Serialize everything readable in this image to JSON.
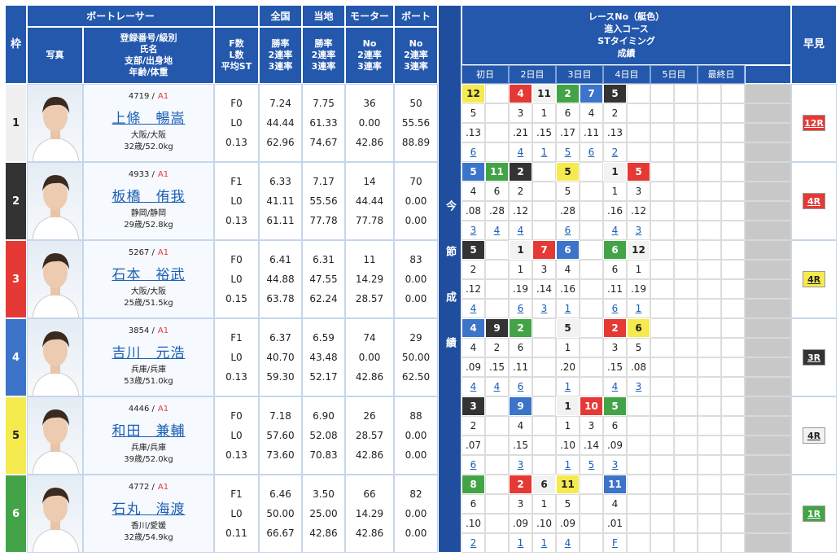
{
  "header": {
    "frame": "枠",
    "photo": "写真",
    "racer": "ボートレーサー",
    "racer_fields": [
      "登録番号/級別",
      "氏名",
      "支部/出身地",
      "年齢/体重"
    ],
    "fl_fields": [
      "F数",
      "L数",
      "平均ST"
    ],
    "national": "全国",
    "local": "当地",
    "motor": "モーター",
    "boat": "ボート",
    "rate_fields": [
      "勝率",
      "2連率",
      "3連率"
    ],
    "equip_fields": [
      "No",
      "2連率",
      "3連率"
    ],
    "race_fields": [
      "レースNo（艇色）",
      "進入コース",
      "STタイミング",
      "成績"
    ],
    "days": [
      "初日",
      "2日目",
      "3日目",
      "4日目",
      "5日目",
      "最終日"
    ],
    "session": "今節成績",
    "quick": "早見"
  },
  "racers": [
    {
      "frame": "1",
      "frame_color": "#f0f0f0",
      "reg": "4719 /",
      "class": "A1",
      "name": "上條　暢嵩",
      "branch": "大阪/大阪",
      "age": "32歳/52.0kg",
      "fl": [
        "F0",
        "L0",
        "0.13"
      ],
      "national": [
        "7.24",
        "44.44",
        "62.96"
      ],
      "local": [
        "7.75",
        "61.33",
        "74.67"
      ],
      "motor": [
        "36",
        "0.00",
        "42.86"
      ],
      "boat": [
        "50",
        "55.56",
        "88.89"
      ],
      "races": [
        {
          "race": "12",
          "color": "#f5ea4e",
          "course": "5",
          "st": ".13",
          "result": "6"
        },
        null,
        {
          "race": "4",
          "color": "#e53935",
          "course": "3",
          "st": ".21",
          "result": "4"
        },
        {
          "race": "11",
          "color": "#f2f2f2",
          "course": "1",
          "st": ".15",
          "result": "1"
        },
        {
          "race": "2",
          "color": "#43a447",
          "course": "6",
          "st": ".17",
          "result": "5"
        },
        {
          "race": "7",
          "color": "#3b74c9",
          "course": "4",
          "st": ".11",
          "result": "6"
        },
        {
          "race": "5",
          "color": "#333333",
          "course": "2",
          "st": ".13",
          "result": "2"
        },
        null,
        null,
        null,
        null,
        null
      ],
      "quick": "12R",
      "quick_color": "#e53935"
    },
    {
      "frame": "2",
      "frame_color": "#333333",
      "reg": "4933 /",
      "class": "A1",
      "name": "板橋　侑我",
      "branch": "静岡/静岡",
      "age": "29歳/52.8kg",
      "fl": [
        "F1",
        "L0",
        "0.13"
      ],
      "national": [
        "6.33",
        "41.11",
        "61.11"
      ],
      "local": [
        "7.17",
        "55.56",
        "77.78"
      ],
      "motor": [
        "14",
        "44.44",
        "77.78"
      ],
      "boat": [
        "70",
        "0.00",
        "0.00"
      ],
      "races": [
        {
          "race": "5",
          "color": "#3b74c9",
          "course": "4",
          "st": ".08",
          "result": "3"
        },
        {
          "race": "11",
          "color": "#43a447",
          "course": "6",
          "st": ".28",
          "result": "4"
        },
        {
          "race": "2",
          "color": "#333333",
          "course": "2",
          "st": ".12",
          "result": "4"
        },
        null,
        {
          "race": "5",
          "color": "#f5ea4e",
          "course": "5",
          "st": ".28",
          "result": "6"
        },
        null,
        {
          "race": "1",
          "color": "#f2f2f2",
          "course": "1",
          "st": ".16",
          "result": "4"
        },
        {
          "race": "5",
          "color": "#e53935",
          "course": "3",
          "st": ".12",
          "result": "3"
        },
        null,
        null,
        null,
        null
      ],
      "quick": "4R",
      "quick_color": "#e53935"
    },
    {
      "frame": "3",
      "frame_color": "#e53935",
      "reg": "5267 /",
      "class": "A1",
      "name": "石本　裕武",
      "branch": "大阪/大阪",
      "age": "25歳/51.5kg",
      "fl": [
        "F0",
        "L0",
        "0.15"
      ],
      "national": [
        "6.41",
        "44.88",
        "63.78"
      ],
      "local": [
        "6.31",
        "47.55",
        "62.24"
      ],
      "motor": [
        "11",
        "14.29",
        "28.57"
      ],
      "boat": [
        "83",
        "0.00",
        "0.00"
      ],
      "races": [
        {
          "race": "5",
          "color": "#333333",
          "course": "2",
          "st": ".12",
          "result": "4"
        },
        null,
        {
          "race": "1",
          "color": "#f2f2f2",
          "course": "1",
          "st": ".19",
          "result": "6"
        },
        {
          "race": "7",
          "color": "#e53935",
          "course": "3",
          "st": ".14",
          "result": "3"
        },
        {
          "race": "6",
          "color": "#3b74c9",
          "course": "4",
          "st": ".16",
          "result": "1"
        },
        null,
        {
          "race": "6",
          "color": "#43a447",
          "course": "6",
          "st": ".11",
          "result": "6"
        },
        {
          "race": "12",
          "color": "#f2f2f2",
          "course": "1",
          "st": ".19",
          "result": "1"
        },
        null,
        null,
        null,
        null
      ],
      "quick": "4R",
      "quick_color": "#f5ea4e"
    },
    {
      "frame": "4",
      "frame_color": "#3b74c9",
      "reg": "3854 /",
      "class": "A1",
      "name": "吉川　元浩",
      "branch": "兵庫/兵庫",
      "age": "53歳/51.0kg",
      "fl": [
        "F1",
        "L0",
        "0.13"
      ],
      "national": [
        "6.37",
        "40.70",
        "59.30"
      ],
      "local": [
        "6.59",
        "43.48",
        "52.17"
      ],
      "motor": [
        "74",
        "0.00",
        "42.86"
      ],
      "boat": [
        "29",
        "50.00",
        "62.50"
      ],
      "races": [
        {
          "race": "4",
          "color": "#3b74c9",
          "course": "4",
          "st": ".09",
          "result": "4"
        },
        {
          "race": "9",
          "color": "#333333",
          "course": "2",
          "st": ".15",
          "result": "4"
        },
        {
          "race": "2",
          "color": "#43a447",
          "course": "6",
          "st": ".11",
          "result": "6"
        },
        null,
        {
          "race": "5",
          "color": "#f2f2f2",
          "course": "1",
          "st": ".20",
          "result": "1"
        },
        null,
        {
          "race": "2",
          "color": "#e53935",
          "course": "3",
          "st": ".15",
          "result": "4"
        },
        {
          "race": "6",
          "color": "#f5ea4e",
          "course": "5",
          "st": ".08",
          "result": "3"
        },
        null,
        null,
        null,
        null
      ],
      "quick": "3R",
      "quick_color": "#333333"
    },
    {
      "frame": "5",
      "frame_color": "#f5ea4e",
      "reg": "4446 /",
      "class": "A1",
      "name": "和田　兼輔",
      "branch": "兵庫/兵庫",
      "age": "39歳/52.0kg",
      "fl": [
        "F0",
        "L0",
        "0.13"
      ],
      "national": [
        "7.18",
        "57.60",
        "73.60"
      ],
      "local": [
        "6.90",
        "52.08",
        "70.83"
      ],
      "motor": [
        "26",
        "28.57",
        "42.86"
      ],
      "boat": [
        "88",
        "0.00",
        "0.00"
      ],
      "races": [
        {
          "race": "3",
          "color": "#333333",
          "course": "2",
          "st": ".07",
          "result": "6"
        },
        null,
        {
          "race": "9",
          "color": "#3b74c9",
          "course": "4",
          "st": ".15",
          "result": "3"
        },
        null,
        {
          "race": "1",
          "color": "#f2f2f2",
          "course": "1",
          "st": ".10",
          "result": "1"
        },
        {
          "race": "10",
          "color": "#e53935",
          "course": "3",
          "st": ".14",
          "result": "5"
        },
        {
          "race": "5",
          "color": "#43a447",
          "course": "6",
          "st": ".09",
          "result": "3"
        },
        null,
        null,
        null,
        null,
        null
      ],
      "quick": "4R",
      "quick_color": "#f2f2f2"
    },
    {
      "frame": "6",
      "frame_color": "#43a447",
      "reg": "4772 /",
      "class": "A1",
      "name": "石丸　海渡",
      "branch": "香川/愛媛",
      "age": "32歳/54.9kg",
      "fl": [
        "F1",
        "L0",
        "0.11"
      ],
      "national": [
        "6.46",
        "50.00",
        "66.67"
      ],
      "local": [
        "3.50",
        "25.00",
        "42.86"
      ],
      "motor": [
        "66",
        "14.29",
        "42.86"
      ],
      "boat": [
        "82",
        "0.00",
        "0.00"
      ],
      "races": [
        {
          "race": "8",
          "color": "#43a447",
          "course": "6",
          "st": ".10",
          "result": "2"
        },
        null,
        {
          "race": "2",
          "color": "#e53935",
          "course": "3",
          "st": ".09",
          "result": "1"
        },
        {
          "race": "6",
          "color": "#f2f2f2",
          "course": "1",
          "st": ".10",
          "result": "1"
        },
        {
          "race": "11",
          "color": "#f5ea4e",
          "course": "5",
          "st": ".09",
          "result": "4"
        },
        null,
        {
          "race": "11",
          "color": "#3b74c9",
          "course": "4",
          "st": ".01",
          "result": "F"
        },
        null,
        null,
        null,
        null,
        null
      ],
      "quick": "1R",
      "quick_color": "#43a447"
    }
  ]
}
